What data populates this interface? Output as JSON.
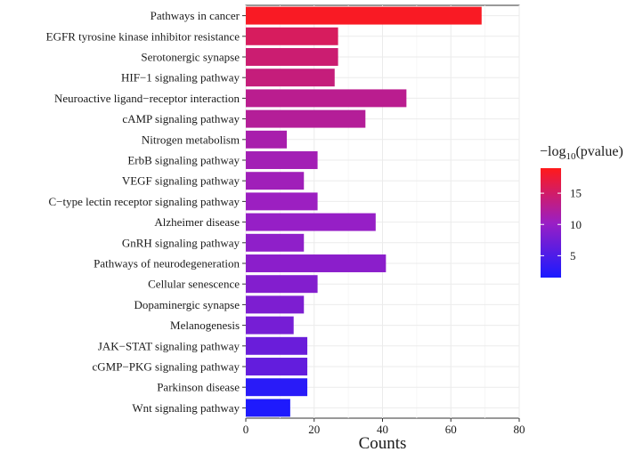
{
  "chart_data": {
    "type": "bar",
    "orientation": "horizontal",
    "title": "",
    "xlabel": "Counts",
    "ylabel": "",
    "xlim": [
      0,
      80
    ],
    "x_ticks": [
      0,
      20,
      40,
      60,
      80
    ],
    "grid": true,
    "categories": [
      "Pathways in cancer",
      "EGFR tyrosine kinase inhibitor resistance",
      "Serotonergic synapse",
      "HIF−1 signaling pathway",
      "Neuroactive ligand−receptor interaction",
      "cAMP signaling pathway",
      "Nitrogen metabolism",
      "ErbB signaling pathway",
      "VEGF signaling pathway",
      "C−type lectin receptor signaling pathway",
      "Alzheimer disease",
      "GnRH signaling pathway",
      "Pathways of neurodegeneration",
      "Cellular senescence",
      "Dopaminergic synapse",
      "Melanogenesis",
      "JAK−STAT signaling pathway",
      "cGMP−PKG signaling pathway",
      "Parkinson disease",
      "Wnt signaling pathway"
    ],
    "values": [
      69,
      27,
      27,
      26,
      47,
      35,
      12,
      21,
      17,
      21,
      38,
      17,
      41,
      21,
      17,
      14,
      18,
      18,
      18,
      13
    ],
    "color_values": [
      18.5,
      15.5,
      14.5,
      14.0,
      13.0,
      12.5,
      11.5,
      11.0,
      10.8,
      10.4,
      10.0,
      9.5,
      9.2,
      8.7,
      8.3,
      7.8,
      7.0,
      6.5,
      2.5,
      1.8
    ],
    "legend": {
      "title_prefix": "−log",
      "title_sub": "10",
      "title_suffix": "(pvalue)",
      "ticks": [
        5,
        10,
        15
      ],
      "range": [
        1.5,
        19
      ],
      "color_low": "#1a1aff",
      "color_mid": "#9a1fc4",
      "color_high": "#ff1a1a",
      "placement": "right"
    }
  }
}
